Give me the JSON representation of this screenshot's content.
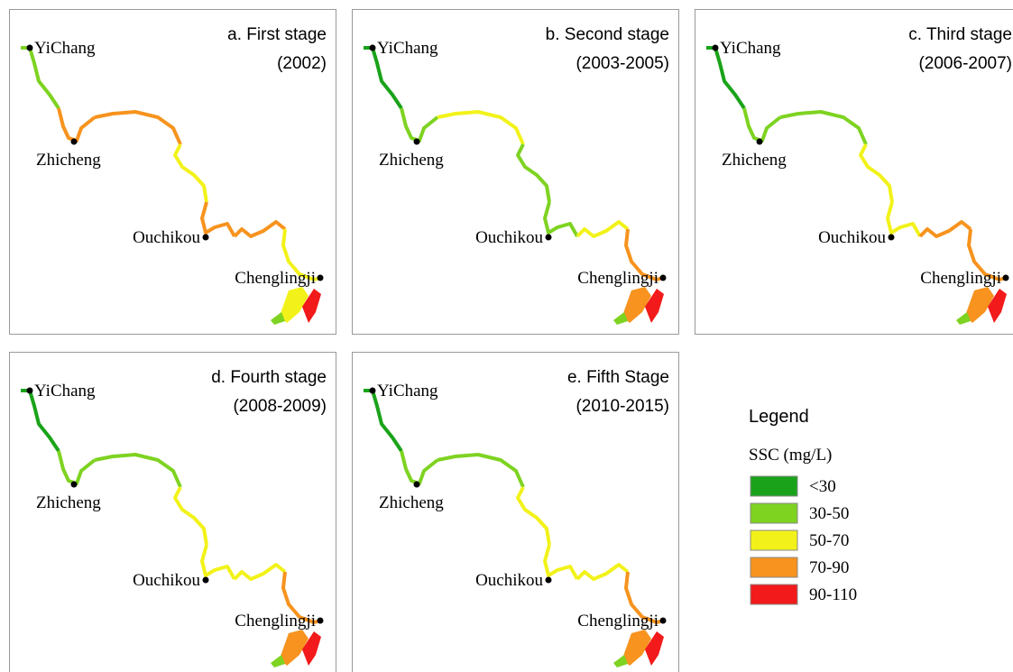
{
  "panels": [
    {
      "title": "a. First stage",
      "period": "(2002)",
      "places": [
        "YiChang",
        "Zhicheng",
        "Ouchikou",
        "Chenglingji"
      ]
    },
    {
      "title": "b. Second stage",
      "period": "(2003-2005)",
      "places": [
        "YiChang",
        "Zhicheng",
        "Ouchikou",
        "Chenglingji"
      ]
    },
    {
      "title": "c. Third stage",
      "period": "(2006-2007)",
      "places": [
        "YiChang",
        "Zhicheng",
        "Ouchikou",
        "Chenglingji"
      ]
    },
    {
      "title": "d. Fourth stage",
      "period": "(2008-2009)",
      "places": [
        "YiChang",
        "Zhicheng",
        "Ouchikou",
        "Chenglingji"
      ]
    },
    {
      "title": "e. Fifth Stage",
      "period": "(2010-2015)",
      "places": [
        "YiChang",
        "Zhicheng",
        "Ouchikou",
        "Chenglingji"
      ]
    }
  ],
  "legend": {
    "title": "Legend",
    "subtitle": "SSC (mg/L)",
    "items": [
      {
        "label": "<30",
        "color": "#1aa31a"
      },
      {
        "label": "30-50",
        "color": "#7ed321"
      },
      {
        "label": "50-70",
        "color": "#f2f21a"
      },
      {
        "label": "70-90",
        "color": "#f7931e"
      },
      {
        "label": "90-110",
        "color": "#f21a1a"
      }
    ]
  }
}
